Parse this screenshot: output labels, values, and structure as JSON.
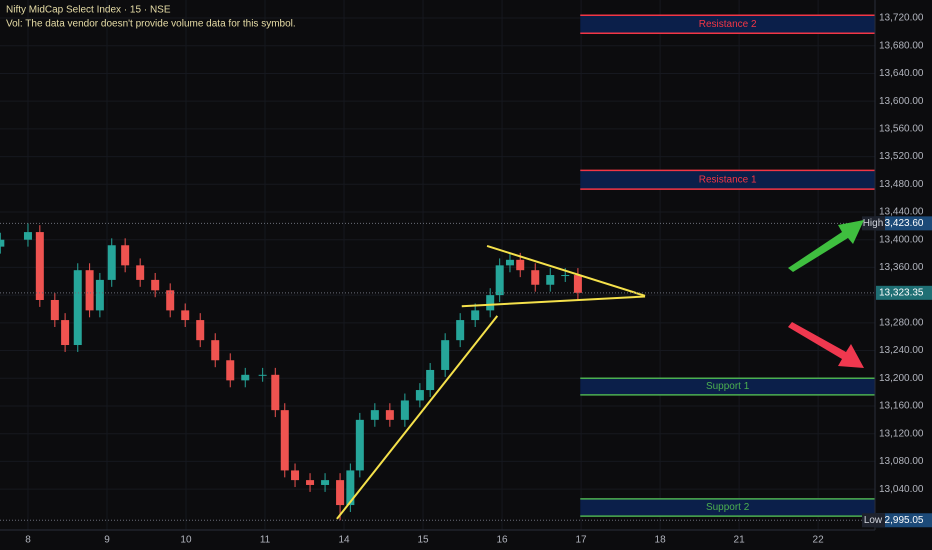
{
  "chart_data": {
    "type": "candlestick",
    "title": "Nifty MidCap Select Index · 15 · NSE",
    "subtitle": "Vol: The data vendor doesn't provide volume data for this symbol.",
    "xlim": [
      -0.354,
      10.72
    ],
    "ylim": [
      12981,
      13746
    ],
    "xticks": [
      {
        "value": 0,
        "label": "8"
      },
      {
        "value": 1,
        "label": "9"
      },
      {
        "value": 2,
        "label": "10"
      },
      {
        "value": 3,
        "label": "11"
      },
      {
        "value": 4,
        "label": "14"
      },
      {
        "value": 5,
        "label": "15"
      },
      {
        "value": 6,
        "label": "16"
      },
      {
        "value": 7,
        "label": "17"
      },
      {
        "value": 8,
        "label": "18"
      },
      {
        "value": 9,
        "label": "21"
      },
      {
        "value": 10,
        "label": "22"
      }
    ],
    "yticks": [
      {
        "value": 13040,
        "label": "13,040.00"
      },
      {
        "value": 13080,
        "label": "13,080.00"
      },
      {
        "value": 13120,
        "label": "13,120.00"
      },
      {
        "value": 13160,
        "label": "13,160.00"
      },
      {
        "value": 13200,
        "label": "13,200.00"
      },
      {
        "value": 13240,
        "label": "13,240.00"
      },
      {
        "value": 13280,
        "label": "13,280.00"
      },
      {
        "value": 13320,
        "label": "13,320.00"
      },
      {
        "value": 13360,
        "label": "13,360.00"
      },
      {
        "value": 13400,
        "label": "13,400.00"
      },
      {
        "value": 13440,
        "label": "13,440.00"
      },
      {
        "value": 13480,
        "label": "13,480.00"
      },
      {
        "value": 13520,
        "label": "13,520.00"
      },
      {
        "value": 13560,
        "label": "13,560.00"
      },
      {
        "value": 13600,
        "label": "13,600.00"
      },
      {
        "value": 13640,
        "label": "13,640.00"
      },
      {
        "value": 13680,
        "label": "13,680.00"
      },
      {
        "value": 13720,
        "label": "13,720.00"
      }
    ],
    "grid": true,
    "up_color": "#26a69a",
    "down_color": "#ef5350",
    "x": [
      -0.35,
      0,
      0.15,
      0.34,
      0.47,
      0.63,
      0.78,
      0.91,
      1.06,
      1.23,
      1.42,
      1.61,
      1.8,
      1.99,
      2.18,
      2.37,
      2.56,
      2.75,
      2.97,
      3.13,
      3.25,
      3.38,
      3.57,
      3.76,
      3.95,
      4.08,
      4.2,
      4.39,
      4.58,
      4.77,
      4.96,
      5.09,
      5.28,
      5.47,
      5.66,
      5.85,
      5.97,
      6.1,
      6.23,
      6.42,
      6.61,
      6.8,
      6.96
    ],
    "open": [
      13390,
      13400,
      13411,
      13313,
      13284,
      13248,
      13356,
      13298,
      13342,
      13392,
      13363,
      13342,
      13327,
      13298,
      13284,
      13255,
      13226,
      13197,
      13205,
      13205,
      13154,
      13067,
      13053,
      13046,
      13053,
      13017,
      13067,
      13140,
      13154,
      13140,
      13168,
      13183,
      13212,
      13255,
      13284,
      13298,
      13320,
      13363,
      13371,
      13356,
      13335,
      13349,
      13349
    ],
    "high": [
      13410,
      13423.6,
      13421,
      13323,
      13294,
      13366,
      13366,
      13352,
      13402,
      13402,
      13373,
      13352,
      13337,
      13308,
      13294,
      13265,
      13236,
      13215,
      13215,
      13215,
      13164,
      13077,
      13063,
      13063,
      13063,
      13077,
      13150,
      13164,
      13164,
      13178,
      13193,
      13222,
      13265,
      13294,
      13308,
      13330,
      13373,
      13381,
      13381,
      13366,
      13359,
      13359,
      13359
    ],
    "low": [
      13380,
      13390,
      13303,
      13274,
      13238,
      13238,
      13288,
      13288,
      13332,
      13353,
      13332,
      13317,
      13288,
      13274,
      13245,
      13216,
      13187,
      13187,
      13195,
      13144,
      13057,
      13043,
      13036,
      13036,
      12995.05,
      13007,
      13057,
      13130,
      13130,
      13130,
      13158,
      13173,
      13202,
      13245,
      13274,
      13288,
      13310,
      13353,
      13346,
      13325,
      13325,
      13339,
      13313.35
    ],
    "close": [
      13400,
      13411,
      13313,
      13284,
      13248,
      13356,
      13298,
      13342,
      13392,
      13363,
      13342,
      13327,
      13298,
      13284,
      13255,
      13226,
      13197,
      13205,
      13205,
      13154,
      13067,
      13053,
      13046,
      13053,
      13017,
      13067,
      13140,
      13154,
      13140,
      13168,
      13183,
      13212,
      13255,
      13284,
      13298,
      13320,
      13363,
      13371,
      13356,
      13335,
      13349,
      13349,
      13323.35
    ],
    "zones": [
      {
        "label": "Resistance 2",
        "from": 6.99,
        "top": 13724,
        "bottom": 13698,
        "color": "#f23645"
      },
      {
        "label": "Resistance 1",
        "from": 6.99,
        "top": 13500,
        "bottom": 13473,
        "color": "#f23645"
      },
      {
        "label": "Support 1",
        "from": 6.99,
        "top": 13200,
        "bottom": 13176,
        "color": "#4caf50"
      },
      {
        "label": "Support 2",
        "from": 6.99,
        "top": 13026,
        "bottom": 13001,
        "color": "#4caf50"
      }
    ],
    "trendlines": [
      {
        "color": "#f5e14b",
        "points": [
          [
            3.91,
            12997
          ],
          [
            5.94,
            13290
          ]
        ]
      },
      {
        "color": "#f5e14b",
        "points": [
          [
            5.81,
            13391
          ],
          [
            7.81,
            13319
          ]
        ]
      },
      {
        "color": "#f5e14b",
        "points": [
          [
            5.49,
            13304
          ],
          [
            7.81,
            13318
          ]
        ]
      }
    ],
    "price_labels": [
      {
        "tag": "High",
        "value": 13423.6,
        "label": "13,423.60",
        "color": "#1c4a78"
      },
      {
        "value": 13323.35,
        "label": "13,323.35",
        "color": "#1f6f74"
      },
      {
        "tag": "Low",
        "value": 12995.05,
        "label": "12,995.05",
        "color": "#1c4a78"
      }
    ]
  }
}
